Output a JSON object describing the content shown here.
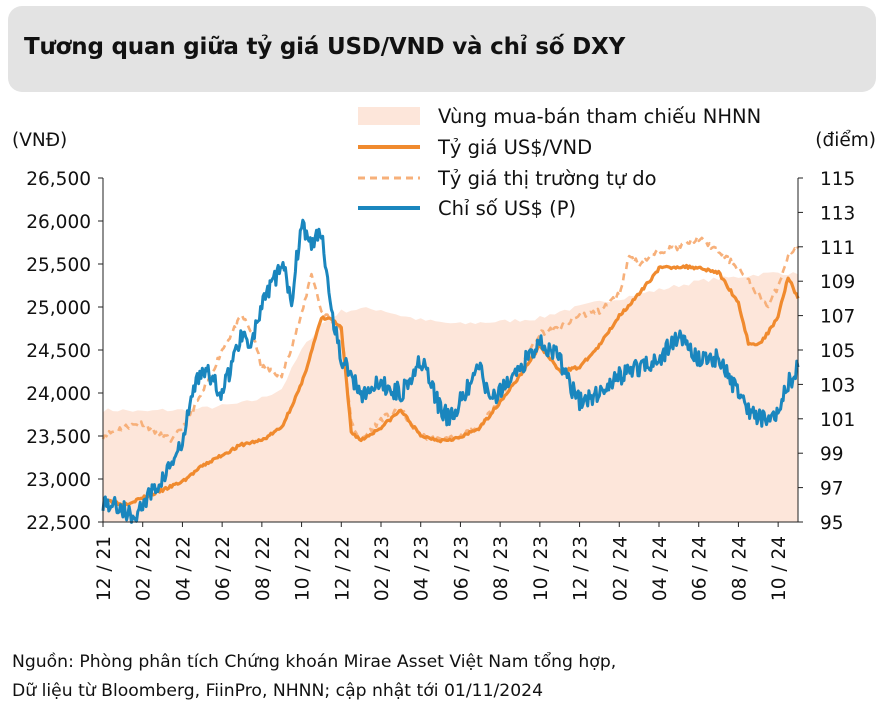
{
  "title": "Tương quan giữa tỷ giá USD/VND và chỉ số DXY",
  "source": {
    "line1": "Nguồn: Phòng phân tích Chứng khoán Mirae Asset Việt Nam tổng hợp,",
    "line2": "Dữ liệu từ Bloomberg, FiinPro, NHNN; cập nhật tới 01/11/2024"
  },
  "colors": {
    "band": "#fde6da",
    "official": "#f08a2e",
    "free_market": "#f7b07a",
    "dxy": "#1a86be",
    "title_bg": "#e3e3e3"
  },
  "chart_data": {
    "type": "line",
    "title": "Tương quan giữa tỷ giá USD/VND và chỉ số DXY",
    "left_axis_label": "(VNĐ)",
    "right_axis_label": "(điểm)",
    "left_ylim": [
      22500,
      26500
    ],
    "right_ylim": [
      95,
      115
    ],
    "left_ticks": [
      "22,500",
      "23,000",
      "23,500",
      "24,000",
      "24,500",
      "25,000",
      "25,500",
      "26,000",
      "26,500"
    ],
    "left_tick_values": [
      22500,
      23000,
      23500,
      24000,
      24500,
      25000,
      25500,
      26000,
      26500
    ],
    "right_ticks": [
      "95",
      "97",
      "99",
      "101",
      "103",
      "105",
      "107",
      "109",
      "111",
      "113",
      "115"
    ],
    "right_tick_values": [
      95,
      97,
      99,
      101,
      103,
      105,
      107,
      109,
      111,
      113,
      115
    ],
    "x_range": [
      0,
      35
    ],
    "x_tick_labels": [
      "12 / 21",
      "02 / 22",
      "04 / 22",
      "06 / 22",
      "08 / 22",
      "10 / 22",
      "12 / 22",
      "02 / 23",
      "04 / 23",
      "06 / 23",
      "08 / 23",
      "10 / 23",
      "12 / 23",
      "02 / 24",
      "04 / 24",
      "06 / 24",
      "08 / 24",
      "10 / 24"
    ],
    "x_tick_positions": [
      0,
      2,
      4,
      6,
      8,
      10,
      12,
      14,
      16,
      18,
      20,
      22,
      24,
      26,
      28,
      30,
      32,
      34
    ],
    "legend": [
      {
        "key": "band",
        "label": "Vùng mua-bán tham chiếu NHNN"
      },
      {
        "key": "official",
        "label": "Tỷ giá US$/VND"
      },
      {
        "key": "free_market",
        "label": "Tỷ giá thị trường tự do"
      },
      {
        "key": "dxy",
        "label": "Chỉ số US$ (P)"
      }
    ],
    "series": [
      {
        "name": "Vùng mua-bán tham chiếu NHNN (cận trên)",
        "axis": "left",
        "x": [
          0,
          1,
          2,
          3,
          4,
          5,
          6,
          7,
          8,
          9,
          10,
          11,
          12,
          13,
          14,
          15,
          16,
          17,
          18,
          19,
          20,
          21,
          22,
          23,
          24,
          25,
          26,
          27,
          28,
          29,
          30,
          31,
          32,
          33,
          34,
          35
        ],
        "values": [
          23800,
          23800,
          23780,
          23800,
          23800,
          23820,
          23850,
          23880,
          23940,
          24050,
          24500,
          24800,
          24950,
          24980,
          24970,
          24900,
          24850,
          24820,
          24800,
          24820,
          24830,
          24850,
          24870,
          24950,
          25000,
          25060,
          25100,
          25150,
          25200,
          25250,
          25300,
          25330,
          25350,
          25380,
          25400,
          25380
        ]
      },
      {
        "name": "Vùng mua-bán tham chiếu NHNN (cận dưới)",
        "axis": "left",
        "x": [
          0,
          35
        ],
        "values": [
          22500,
          22500
        ]
      },
      {
        "name": "Tỷ giá US$/VND",
        "axis": "left",
        "x": [
          0,
          1,
          2,
          3,
          4,
          5,
          6,
          7,
          8,
          9,
          10,
          11,
          11.5,
          12,
          12.5,
          13,
          14,
          15,
          16,
          17,
          18,
          19,
          20,
          21,
          22,
          23,
          24,
          25,
          26,
          27,
          28,
          29,
          30,
          31,
          32,
          32.5,
          33,
          33.5,
          34,
          34.5,
          35
        ],
        "values": [
          22770,
          22700,
          22780,
          22870,
          22970,
          23150,
          23280,
          23400,
          23450,
          23600,
          24100,
          24870,
          24860,
          24750,
          23550,
          23450,
          23600,
          23800,
          23500,
          23450,
          23480,
          23600,
          23900,
          24200,
          24550,
          24250,
          24300,
          24550,
          24900,
          25150,
          25450,
          25470,
          25460,
          25400,
          25050,
          24580,
          24560,
          24700,
          24900,
          25350,
          25100
        ]
      },
      {
        "name": "Tỷ giá thị trường tự do",
        "axis": "left",
        "x": [
          0,
          1,
          2,
          3,
          3.5,
          4,
          5,
          6,
          7,
          7.5,
          8,
          9,
          10,
          10.5,
          11,
          12,
          12.5,
          13,
          14,
          15,
          16,
          17,
          18,
          19,
          20,
          21,
          22,
          23,
          24,
          25,
          26,
          26.5,
          27,
          28,
          29,
          30,
          31,
          32,
          33,
          33.5,
          34,
          34.5,
          35
        ],
        "values": [
          23500,
          23600,
          23650,
          23500,
          23450,
          23600,
          24000,
          24500,
          24900,
          24700,
          24300,
          24200,
          24900,
          25400,
          24950,
          24750,
          23650,
          23450,
          23700,
          23800,
          23500,
          23450,
          23500,
          23600,
          23950,
          24300,
          24700,
          24750,
          24900,
          24950,
          25150,
          25600,
          25500,
          25650,
          25700,
          25800,
          25650,
          25450,
          25150,
          25000,
          25250,
          25600,
          25700
        ]
      },
      {
        "name": "Chỉ số US$ (P)",
        "axis": "right",
        "x": [
          0,
          1,
          1.5,
          2,
          3,
          4,
          4.5,
          5,
          6,
          7,
          7.5,
          8,
          9,
          9.5,
          10,
          10.5,
          11,
          11.5,
          12,
          13,
          14,
          15,
          16,
          17,
          17.5,
          18,
          19,
          19.5,
          20,
          21,
          22,
          23,
          23.5,
          24,
          25,
          26,
          27,
          28,
          29,
          30,
          31,
          32,
          32.5,
          33,
          34,
          34.5,
          35
        ],
        "values": [
          96.2,
          95.8,
          95.2,
          96.0,
          97.5,
          99.5,
          102.5,
          104.0,
          102.5,
          106.0,
          105.5,
          107.5,
          110.0,
          108.0,
          112.5,
          111.0,
          112.0,
          107.5,
          104.5,
          102.5,
          103.0,
          102.5,
          104.5,
          101.5,
          101.0,
          102.0,
          104.0,
          102.0,
          102.5,
          104.0,
          105.5,
          104.5,
          103.0,
          102.0,
          102.5,
          103.5,
          104.0,
          104.5,
          105.8,
          104.5,
          104.5,
          102.5,
          101.5,
          101.0,
          101.5,
          103.0,
          104.0
        ]
      }
    ]
  }
}
